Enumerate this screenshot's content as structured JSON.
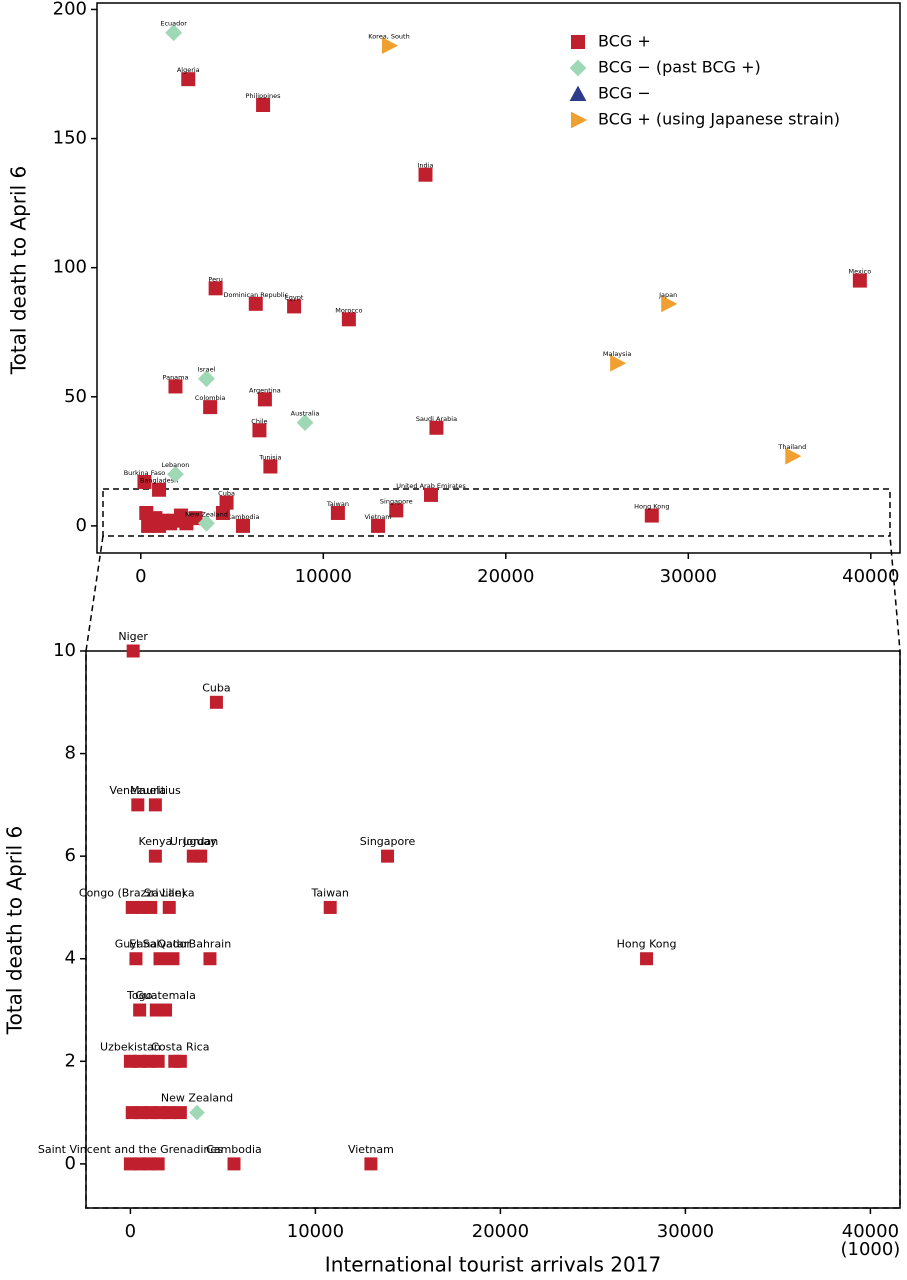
{
  "chart_data": [
    {
      "type": "scatter",
      "y_label": "Total death to April 6",
      "xlim": [
        -2400,
        41600
      ],
      "ylim": [
        -10.5,
        202.5
      ],
      "xticks": [
        0,
        10000,
        20000,
        30000,
        40000
      ],
      "yticks": [
        0,
        50,
        100,
        150,
        200
      ],
      "legend": "upper right",
      "series": [
        {
          "name": "BCG +",
          "color": "#c0202e",
          "marker": "square",
          "x": [
            2600,
            6700,
            15600,
            39400,
            4100,
            6300,
            8400,
            11400,
            1900,
            6800,
            3800,
            6500,
            16200,
            7100,
            200,
            1000,
            15900,
            4700,
            14000,
            10800,
            28000,
            5600,
            13000,
            300,
            800,
            1200,
            1600,
            2200,
            400,
            1000,
            1800,
            2500,
            3000,
            4500
          ],
          "values": [
            173,
            163,
            136,
            95,
            92,
            86,
            85,
            80,
            54,
            49,
            46,
            37,
            38,
            23,
            17,
            14,
            12,
            9,
            6,
            5,
            4,
            0,
            0,
            5,
            3,
            2,
            1,
            4,
            0,
            0,
            2,
            1,
            3,
            5
          ],
          "labels": [
            "Algeria",
            "Philippines",
            "India",
            "Mexico",
            "Peru",
            "Dominican Republic",
            "Egypt",
            "Morocco",
            "Panama",
            "Argentina",
            "Colombia",
            "Chile",
            "Saudi Arabia",
            "Tunisia",
            "Burkina Faso",
            "Bangladesh",
            "United Arab Emirates",
            "Cuba",
            "Singapore",
            "Taiwan",
            "Hong Kong",
            "Cambodia",
            "Vietnam",
            null,
            null,
            null,
            null,
            null,
            null,
            null,
            null,
            null,
            null,
            null
          ]
        },
        {
          "name": "BCG − (past BCG +)",
          "color": "#9ed8b4",
          "marker": "diamond",
          "x": [
            1800,
            3600,
            9000,
            1900,
            3600
          ],
          "values": [
            191,
            57,
            40,
            20,
            1
          ],
          "labels": [
            "Ecuador",
            "Israel",
            "Australia",
            "Lebanon",
            "New Zealand"
          ]
        },
        {
          "name": "BCG −",
          "color": "#2e3a8c",
          "marker": "triangle",
          "x": [],
          "values": [],
          "labels": []
        },
        {
          "name": "BCG + (using Japanese strain)",
          "color": "#f0a030",
          "marker": "right",
          "x": [
            13600,
            28900,
            26100,
            35700
          ],
          "values": [
            186,
            86,
            63,
            27
          ],
          "labels": [
            "Korea, South",
            "Japan",
            "Malaysia",
            "Thailand"
          ]
        }
      ]
    },
    {
      "type": "scatter",
      "x_label": "International tourist arrivals 2017",
      "x_unit": "(1000)",
      "y_label": "Total death to April 6",
      "xlim": [
        -2400,
        41600
      ],
      "ylim": [
        -0.86,
        10
      ],
      "xticks": [
        0,
        10000,
        20000,
        30000,
        40000
      ],
      "yticks": [
        0,
        2,
        4,
        6,
        8,
        10
      ],
      "series": [
        {
          "name": "BCG +",
          "color": "#c0202e",
          "marker": "square",
          "x": [
            150,
            4650,
            400,
            1350,
            1350,
            3400,
            3800,
            13900,
            100,
            600,
            1100,
            2100,
            10800,
            300,
            1600,
            2300,
            4300,
            27900,
            500,
            1900,
            1400,
            0,
            500,
            1000,
            1500,
            2700,
            2400,
            100,
            600,
            1100,
            1600,
            2100,
            2700,
            0,
            500,
            1000,
            1500,
            5600,
            13000
          ],
          "values": [
            10,
            9,
            7,
            7,
            6,
            6,
            6,
            6,
            5,
            5,
            5,
            5,
            5,
            4,
            4,
            4,
            4,
            4,
            3,
            3,
            3,
            2,
            2,
            2,
            2,
            2,
            2,
            1,
            1,
            1,
            1,
            1,
            1,
            0,
            0,
            0,
            0,
            0,
            0
          ],
          "labels": [
            "Niger",
            "Cuba",
            "Venezuela",
            "Mauritius",
            "Kenya",
            "Uruguay",
            "Jordan",
            "Singapore",
            "Congo (Brazzaville)",
            null,
            null,
            "Sri Lanka",
            "Taiwan",
            "Guyana",
            "El Salvador",
            "Qatar",
            "Bahrain",
            "Hong Kong",
            "Togo",
            "Guatemala",
            null,
            "Uzbekistan",
            null,
            null,
            null,
            "Costa Rica",
            null,
            null,
            null,
            null,
            null,
            null,
            null,
            "Saint Vincent and the Grenadines",
            null,
            null,
            null,
            "Cambodia",
            "Vietnam"
          ]
        },
        {
          "name": "BCG − (past BCG +)",
          "color": "#9ed8b4",
          "marker": "diamond",
          "x": [
            3600
          ],
          "values": [
            1
          ],
          "labels": [
            "New Zealand"
          ]
        }
      ]
    }
  ]
}
